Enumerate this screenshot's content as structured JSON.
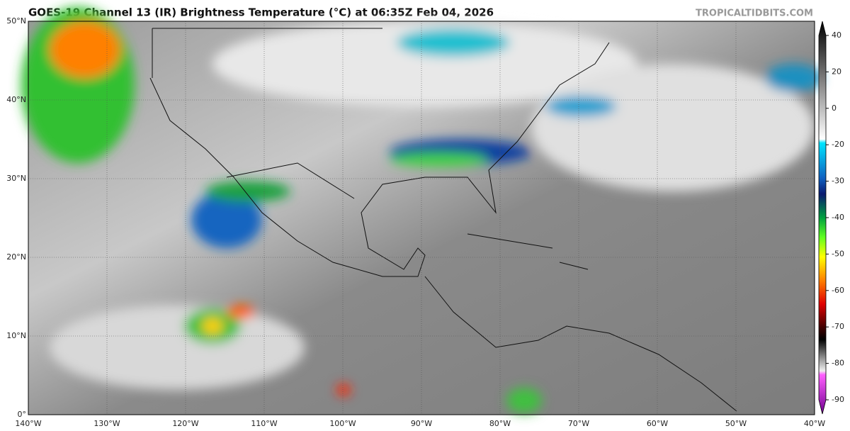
{
  "header": {
    "title": "GOES-19 Channel 13 (IR) Brightness Temperature (°C) at 06:35Z Feb 04, 2026",
    "site": "TROPICALTIDBITS.COM"
  },
  "map": {
    "latitude_labels": [
      "50°N",
      "40°N",
      "30°N",
      "20°N",
      "10°N",
      "0°"
    ],
    "longitude_labels": [
      "140°W",
      "130°W",
      "120°W",
      "110°W",
      "100°W",
      "90°W",
      "80°W",
      "70°W",
      "60°W",
      "50°W",
      "40°W"
    ]
  },
  "colorbar": {
    "ticks": [
      40,
      20,
      0,
      -20,
      -30,
      -40,
      -50,
      -60,
      -70,
      -80,
      -90
    ]
  }
}
